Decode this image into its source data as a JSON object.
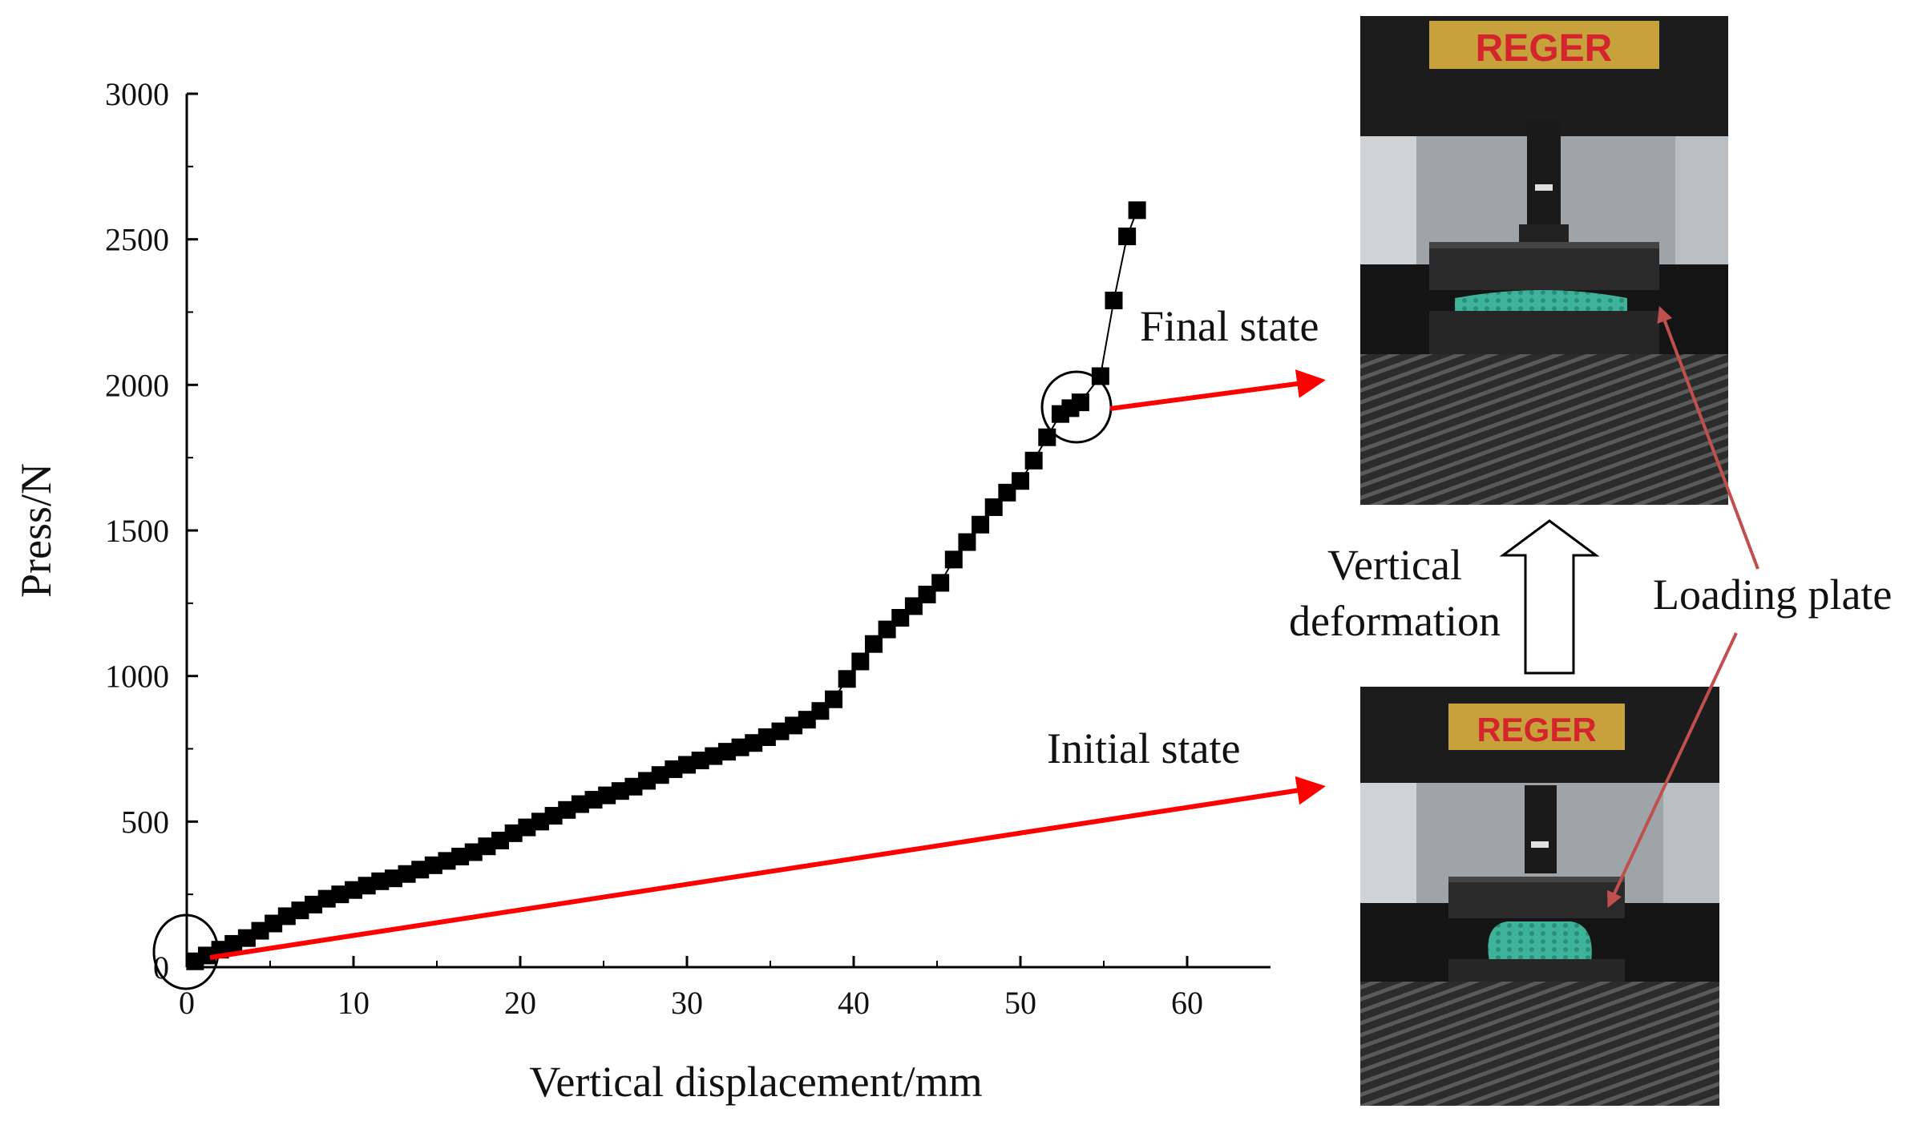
{
  "chart_data": {
    "type": "scatter",
    "xlabel": "Vertical displacement/mm",
    "ylabel": "Press/N",
    "xlim": [
      0,
      65
    ],
    "ylim": [
      0,
      3000
    ],
    "xticks": [
      "0",
      "10",
      "20",
      "30",
      "40",
      "50",
      "60"
    ],
    "yticks": [
      "0",
      "500",
      "1000",
      "1500",
      "2000",
      "2500",
      "3000"
    ],
    "grid": false,
    "marker": "square",
    "marker_color": "#000000",
    "points": [
      [
        0.5,
        20
      ],
      [
        1.2,
        40
      ],
      [
        2.0,
        60
      ],
      [
        2.8,
        80
      ],
      [
        3.6,
        100
      ],
      [
        4.4,
        125
      ],
      [
        5.2,
        150
      ],
      [
        6.0,
        175
      ],
      [
        6.8,
        195
      ],
      [
        7.6,
        215
      ],
      [
        8.4,
        235
      ],
      [
        9.2,
        250
      ],
      [
        10.0,
        265
      ],
      [
        10.8,
        280
      ],
      [
        11.6,
        295
      ],
      [
        12.4,
        305
      ],
      [
        13.2,
        320
      ],
      [
        14.0,
        335
      ],
      [
        14.8,
        350
      ],
      [
        15.6,
        365
      ],
      [
        16.4,
        380
      ],
      [
        17.2,
        395
      ],
      [
        18.0,
        415
      ],
      [
        18.8,
        435
      ],
      [
        19.6,
        460
      ],
      [
        20.4,
        480
      ],
      [
        21.2,
        500
      ],
      [
        22.0,
        520
      ],
      [
        22.8,
        540
      ],
      [
        23.6,
        560
      ],
      [
        24.4,
        575
      ],
      [
        25.2,
        590
      ],
      [
        26.0,
        605
      ],
      [
        26.8,
        620
      ],
      [
        27.6,
        640
      ],
      [
        28.4,
        660
      ],
      [
        29.2,
        680
      ],
      [
        30.0,
        695
      ],
      [
        30.8,
        710
      ],
      [
        31.6,
        725
      ],
      [
        32.4,
        740
      ],
      [
        33.2,
        755
      ],
      [
        34.0,
        770
      ],
      [
        34.8,
        790
      ],
      [
        35.6,
        810
      ],
      [
        36.4,
        830
      ],
      [
        37.2,
        850
      ],
      [
        38.0,
        880
      ],
      [
        38.8,
        920
      ],
      [
        39.6,
        990
      ],
      [
        40.4,
        1050
      ],
      [
        41.2,
        1110
      ],
      [
        42.0,
        1160
      ],
      [
        42.8,
        1200
      ],
      [
        43.6,
        1240
      ],
      [
        44.4,
        1280
      ],
      [
        45.2,
        1320
      ],
      [
        46.0,
        1400
      ],
      [
        46.8,
        1460
      ],
      [
        47.6,
        1520
      ],
      [
        48.4,
        1580
      ],
      [
        49.2,
        1630
      ],
      [
        50.0,
        1670
      ],
      [
        50.8,
        1740
      ],
      [
        51.6,
        1820
      ],
      [
        52.4,
        1900
      ],
      [
        53.0,
        1920
      ],
      [
        53.6,
        1940
      ],
      [
        54.8,
        2030
      ],
      [
        55.6,
        2290
      ],
      [
        56.4,
        2510
      ],
      [
        57.0,
        2600
      ]
    ]
  },
  "annotations": {
    "final_state": "Final state",
    "initial_state": "Initial state",
    "vertical_deformation_line1": "Vertical",
    "vertical_deformation_line2": "deformation",
    "loading_plate": "Loading plate"
  },
  "photos": {
    "brand_label": "REGER",
    "brand_color": "#d4252c",
    "brand_plate_color": "#c7a13c",
    "sample_color": "#3fb39a"
  },
  "colors": {
    "arrow_red": "#ff0000",
    "pointer_red": "#c0504d",
    "axis": "#000000"
  }
}
